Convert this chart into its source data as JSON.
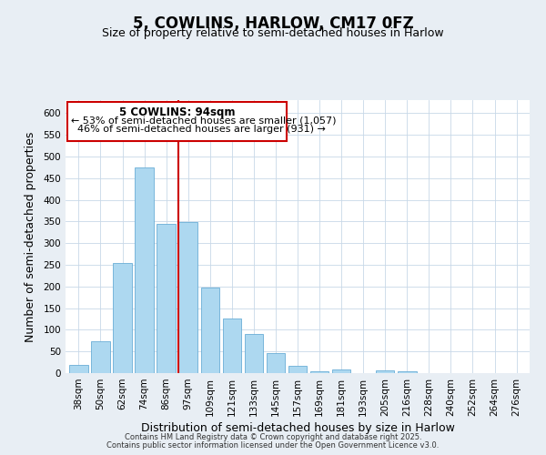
{
  "title": "5, COWLINS, HARLOW, CM17 0FZ",
  "subtitle": "Size of property relative to semi-detached houses in Harlow",
  "xlabel": "Distribution of semi-detached houses by size in Harlow",
  "ylabel": "Number of semi-detached properties",
  "bar_labels": [
    "38sqm",
    "50sqm",
    "62sqm",
    "74sqm",
    "86sqm",
    "97sqm",
    "109sqm",
    "121sqm",
    "133sqm",
    "145sqm",
    "157sqm",
    "169sqm",
    "181sqm",
    "193sqm",
    "205sqm",
    "216sqm",
    "228sqm",
    "240sqm",
    "252sqm",
    "264sqm",
    "276sqm"
  ],
  "bar_values": [
    19,
    74,
    255,
    475,
    345,
    348,
    197,
    127,
    90,
    46,
    17,
    5,
    8,
    1,
    7,
    4,
    1,
    0,
    1,
    0,
    0
  ],
  "bar_color": "#add8f0",
  "bar_edge_color": "#6aaed6",
  "vline_pos": 4.575,
  "vline_label": "5 COWLINS: 94sqm",
  "vline_color": "#cc0000",
  "annotation_line1": "← 53% of semi-detached houses are smaller (1,057)",
  "annotation_line2": "46% of semi-detached houses are larger (931) →",
  "annotation_box_color": "#cc0000",
  "ylim": [
    0,
    630
  ],
  "yticks": [
    0,
    50,
    100,
    150,
    200,
    250,
    300,
    350,
    400,
    450,
    500,
    550,
    600
  ],
  "bg_color": "#e8eef4",
  "plot_bg_color": "#ffffff",
  "footer1": "Contains HM Land Registry data © Crown copyright and database right 2025.",
  "footer2": "Contains public sector information licensed under the Open Government Licence v3.0.",
  "title_fontsize": 12,
  "subtitle_fontsize": 9,
  "label_fontsize": 9,
  "tick_fontsize": 7.5,
  "annotation_fontsize": 8,
  "footer_fontsize": 6
}
